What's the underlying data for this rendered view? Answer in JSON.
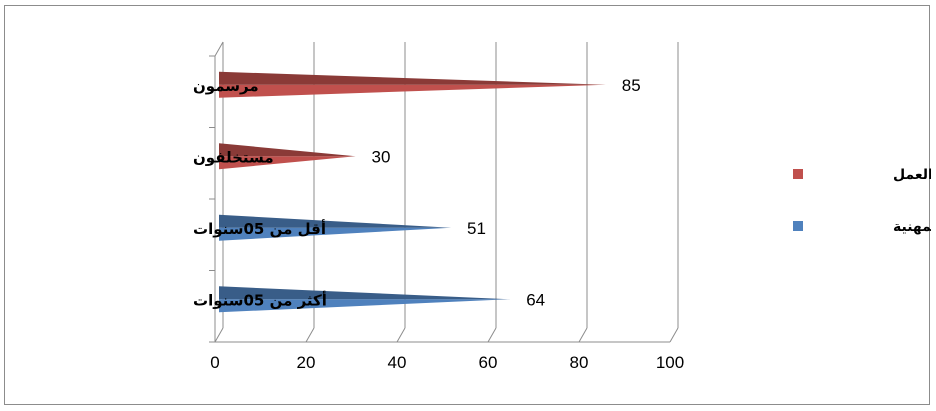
{
  "chart_data": {
    "type": "bar",
    "orientation": "horizontal",
    "three_d": true,
    "categories": [
      "أكثر من 05سنوات",
      "أقل من 05سنوات",
      "مستخلفون",
      "مرسمون"
    ],
    "series": [
      {
        "name": "الخبرة المهنية",
        "color": "#4f81bd",
        "values": [
          64,
          51,
          null,
          null
        ]
      },
      {
        "name": "علاقة العمل",
        "color": "#c0504d",
        "values": [
          null,
          null,
          30,
          85
        ]
      }
    ],
    "xlim": [
      0,
      100
    ],
    "xticks": [
      "0",
      "20",
      "40",
      "60",
      "80",
      "100"
    ],
    "grid": true,
    "legend_position": "right",
    "data_labels": [
      "64",
      "51",
      "30",
      "85"
    ]
  }
}
